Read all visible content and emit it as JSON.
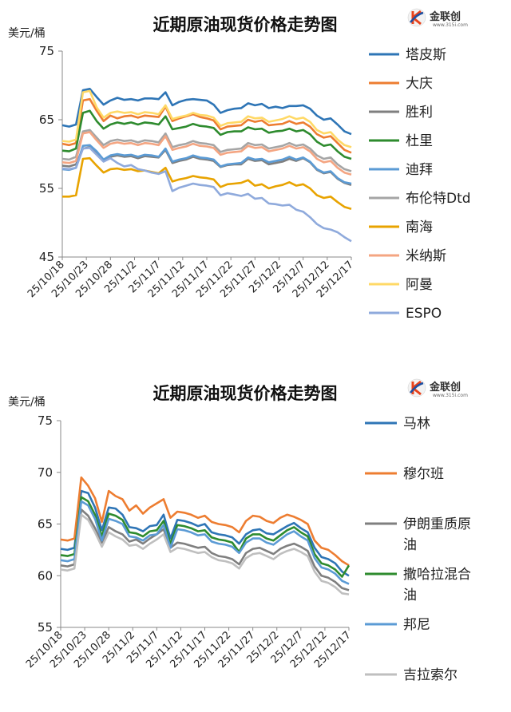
{
  "logo": {
    "text": "金联创",
    "url": "www.315i.com"
  },
  "chart_data": [
    {
      "type": "line",
      "title": "近期原油现货价格走势图",
      "ylabel": "美元/桶",
      "ylim": [
        45,
        75
      ],
      "yticks": [
        45,
        55,
        65,
        75
      ],
      "x_tick_labels": [
        "25/10/18",
        "25/10/23",
        "25/10/28",
        "25/11/2",
        "25/11/7",
        "25/11/12",
        "25/11/17",
        "25/11/22",
        "25/11/27",
        "25/12/2",
        "25/12/7",
        "25/12/12",
        "25/12/17"
      ],
      "grid": false,
      "legend_position": "right",
      "series": [
        {
          "name": "塔皮斯",
          "color": "#2e75b6",
          "values": [
            64.2,
            64.0,
            64.3,
            69.3,
            69.5,
            68.3,
            67.2,
            67.8,
            68.2,
            67.9,
            68.0,
            67.8,
            68.1,
            68.1,
            68.0,
            69.0,
            67.1,
            67.6,
            67.9,
            68.0,
            67.9,
            67.8,
            67.2,
            66.0,
            66.4,
            66.6,
            66.7,
            67.4,
            67.1,
            67.3,
            66.7,
            66.9,
            66.7,
            67.0,
            67.0,
            67.1,
            66.6,
            65.6,
            65.0,
            65.2,
            64.3,
            63.3,
            62.9
          ]
        },
        {
          "name": "大庆",
          "color": "#ed7d31",
          "values": [
            61.5,
            61.3,
            61.6,
            67.8,
            68.0,
            66.3,
            64.8,
            65.6,
            65.2,
            65.5,
            65.6,
            65.3,
            65.6,
            65.5,
            65.4,
            66.9,
            64.8,
            65.2,
            65.5,
            65.8,
            65.4,
            65.2,
            64.9,
            63.6,
            64.0,
            64.1,
            64.2,
            65.0,
            64.7,
            64.9,
            64.2,
            64.3,
            64.4,
            64.8,
            64.4,
            64.6,
            64.0,
            62.9,
            62.4,
            62.6,
            61.6,
            60.6,
            60.2
          ]
        },
        {
          "name": "胜利",
          "color": "#7f7f7f",
          "values": [
            58.3,
            58.2,
            58.5,
            60.8,
            61.0,
            60.2,
            59.0,
            59.6,
            59.8,
            59.6,
            59.7,
            59.4,
            59.7,
            59.6,
            59.5,
            60.6,
            58.7,
            59.0,
            59.2,
            59.6,
            59.3,
            59.2,
            59.0,
            58.1,
            58.4,
            58.5,
            58.5,
            59.3,
            59.0,
            59.1,
            58.5,
            58.7,
            58.9,
            59.3,
            59.0,
            59.4,
            58.8,
            57.7,
            57.2,
            57.4,
            56.4,
            55.8,
            55.5
          ]
        },
        {
          "name": "杜里",
          "color": "#2e8b2e",
          "values": [
            60.5,
            60.4,
            60.8,
            66.0,
            66.3,
            64.8,
            63.7,
            64.3,
            64.6,
            64.4,
            64.6,
            64.3,
            64.6,
            64.5,
            64.3,
            65.5,
            63.6,
            63.8,
            64.0,
            64.4,
            64.1,
            64.0,
            63.8,
            62.8,
            63.2,
            63.3,
            63.3,
            63.9,
            63.6,
            63.7,
            63.1,
            63.3,
            63.4,
            63.7,
            63.3,
            63.5,
            62.9,
            61.8,
            61.2,
            61.4,
            60.4,
            59.6,
            59.3
          ]
        },
        {
          "name": "迪拜",
          "color": "#5b9bd5",
          "values": [
            57.8,
            57.7,
            58.0,
            61.2,
            61.3,
            60.4,
            59.2,
            59.8,
            60.0,
            59.8,
            59.9,
            59.6,
            59.9,
            59.8,
            59.6,
            60.8,
            58.9,
            59.2,
            59.4,
            59.8,
            59.5,
            59.4,
            59.2,
            58.2,
            58.5,
            58.6,
            58.7,
            59.5,
            59.2,
            59.3,
            58.8,
            59.0,
            59.2,
            59.6,
            59.2,
            59.5,
            58.9,
            57.8,
            57.3,
            57.5,
            56.5,
            55.9,
            55.7
          ]
        },
        {
          "name": "布伦特Dtd",
          "color": "#a5a5a5",
          "values": [
            59.3,
            59.2,
            59.6,
            63.3,
            63.5,
            62.4,
            61.3,
            61.9,
            62.1,
            61.9,
            62.0,
            61.7,
            62.0,
            61.9,
            61.7,
            63.0,
            61.0,
            61.3,
            61.5,
            61.9,
            61.6,
            61.5,
            61.3,
            60.3,
            60.6,
            60.7,
            60.8,
            61.6,
            61.3,
            61.4,
            60.8,
            61.0,
            61.2,
            61.6,
            61.2,
            61.4,
            60.8,
            59.8,
            59.3,
            59.5,
            58.5,
            57.8,
            57.5
          ]
        },
        {
          "name": "南海",
          "color": "#e8a300",
          "values": [
            53.8,
            53.8,
            54.0,
            59.3,
            59.4,
            58.3,
            57.3,
            57.8,
            57.9,
            57.7,
            57.8,
            57.5,
            57.6,
            57.4,
            57.2,
            58.0,
            56.0,
            56.3,
            56.5,
            56.8,
            56.6,
            56.5,
            56.3,
            55.2,
            55.6,
            55.7,
            55.8,
            56.2,
            55.4,
            55.6,
            55.0,
            55.3,
            55.5,
            55.9,
            55.4,
            55.6,
            55.0,
            54.0,
            53.6,
            53.8,
            53.0,
            52.3,
            52.0
          ]
        },
        {
          "name": "米纳斯",
          "color": "#f4a582",
          "values": [
            58.8,
            58.7,
            59.0,
            63.0,
            63.2,
            62.0,
            60.9,
            61.5,
            61.7,
            61.5,
            61.6,
            61.3,
            61.6,
            61.5,
            61.3,
            62.6,
            60.6,
            60.9,
            61.1,
            61.5,
            61.2,
            61.1,
            60.9,
            59.9,
            60.2,
            60.3,
            60.4,
            61.2,
            60.9,
            61.0,
            60.4,
            60.6,
            60.8,
            61.2,
            60.8,
            61.0,
            60.4,
            59.3,
            58.8,
            59.0,
            58.0,
            57.3,
            57.0
          ]
        },
        {
          "name": "阿曼",
          "color": "#ffd966",
          "values": [
            61.9,
            61.8,
            62.1,
            69.0,
            69.2,
            66.8,
            65.3,
            66.0,
            66.2,
            66.0,
            66.1,
            65.8,
            66.1,
            66.0,
            65.8,
            67.1,
            65.1,
            65.4,
            65.6,
            66.0,
            65.7,
            65.6,
            65.3,
            64.1,
            64.5,
            64.6,
            64.7,
            65.5,
            65.2,
            65.3,
            64.7,
            64.9,
            65.1,
            65.5,
            65.1,
            65.3,
            64.7,
            63.5,
            63.0,
            63.2,
            62.1,
            61.3,
            61.0
          ]
        },
        {
          "name": "ESPO",
          "color": "#8faadc",
          "values": [
            57.9,
            57.8,
            58.0,
            60.8,
            60.9,
            59.9,
            58.9,
            59.4,
            58.7,
            58.2,
            58.4,
            57.8,
            57.6,
            57.3,
            57.1,
            57.5,
            54.6,
            55.1,
            55.4,
            55.7,
            55.5,
            55.4,
            55.2,
            54.0,
            54.3,
            54.1,
            53.9,
            54.2,
            53.5,
            53.6,
            52.8,
            52.7,
            52.5,
            52.6,
            51.9,
            51.6,
            50.8,
            49.8,
            49.2,
            49.0,
            48.6,
            47.9,
            47.3
          ]
        }
      ]
    },
    {
      "type": "line",
      "title": "近期原油现货价格走势图",
      "ylabel": "美元/桶",
      "ylim": [
        55,
        75
      ],
      "yticks": [
        55,
        60,
        65,
        70,
        75
      ],
      "x_tick_labels": [
        "25/10/18",
        "25/10/23",
        "25/10/28",
        "25/11/2",
        "25/11/7",
        "25/11/12",
        "25/11/17",
        "25/11/22",
        "25/11/27",
        "25/12/2",
        "25/12/7",
        "25/12/12",
        "25/12/17"
      ],
      "grid": false,
      "legend_position": "right",
      "series": [
        {
          "name": "马林",
          "color": "#2e75b6",
          "values": [
            62.6,
            62.5,
            62.7,
            68.2,
            68.0,
            66.6,
            64.4,
            66.6,
            66.5,
            65.9,
            64.7,
            64.6,
            64.3,
            64.8,
            64.9,
            65.9,
            63.6,
            65.4,
            65.3,
            65.1,
            64.8,
            65.0,
            64.2,
            64.0,
            63.9,
            63.7,
            63.1,
            64.0,
            64.4,
            64.5,
            64.1,
            64.0,
            64.4,
            64.8,
            65.1,
            64.6,
            64.2,
            62.7,
            61.8,
            61.6,
            61.2,
            60.4,
            60.0
          ]
        },
        {
          "name": "穆尔班",
          "color": "#ed7d31",
          "values": [
            63.5,
            63.4,
            63.6,
            69.5,
            68.7,
            67.5,
            65.2,
            68.2,
            67.7,
            67.4,
            66.3,
            66.8,
            66.0,
            66.6,
            67.0,
            67.4,
            65.6,
            66.2,
            66.1,
            65.9,
            65.6,
            65.8,
            65.2,
            65.0,
            64.9,
            64.7,
            64.2,
            65.3,
            65.8,
            65.7,
            65.3,
            65.1,
            65.6,
            65.9,
            65.7,
            65.4,
            65.0,
            63.4,
            62.7,
            62.5,
            62.0,
            61.4,
            61.0
          ]
        },
        {
          "name": "伊朗重质原油",
          "color": "#7f7f7f",
          "values": [
            61.0,
            60.9,
            61.1,
            66.4,
            65.8,
            64.6,
            63.2,
            64.7,
            64.3,
            64.0,
            63.3,
            63.5,
            63.1,
            63.6,
            64.0,
            64.5,
            62.7,
            63.2,
            63.1,
            62.9,
            62.7,
            62.8,
            62.2,
            61.9,
            61.8,
            61.6,
            61.1,
            62.2,
            62.6,
            62.7,
            62.4,
            62.1,
            62.6,
            62.9,
            63.1,
            62.8,
            62.4,
            60.9,
            60.0,
            59.8,
            59.4,
            58.8,
            58.6
          ]
        },
        {
          "name": "撒哈拉混合油",
          "color": "#2e8b2e",
          "values": [
            62.0,
            61.9,
            62.1,
            67.6,
            67.2,
            65.9,
            63.8,
            66.0,
            65.8,
            65.4,
            64.2,
            64.1,
            63.8,
            64.3,
            64.4,
            65.3,
            63.1,
            64.9,
            64.8,
            64.6,
            64.3,
            64.4,
            63.7,
            63.5,
            63.4,
            63.2,
            62.3,
            63.6,
            64.0,
            64.0,
            63.6,
            63.4,
            63.9,
            64.4,
            64.7,
            64.2,
            63.8,
            62.1,
            61.2,
            61.0,
            60.6,
            59.9,
            61.0
          ]
        },
        {
          "name": "邦尼",
          "color": "#5b9bd5",
          "values": [
            61.5,
            61.4,
            61.6,
            67.2,
            66.8,
            65.5,
            63.4,
            65.5,
            65.3,
            65.0,
            63.8,
            63.7,
            63.4,
            63.9,
            64.0,
            64.9,
            62.7,
            64.5,
            64.4,
            64.2,
            63.9,
            64.0,
            63.3,
            63.1,
            63.0,
            62.8,
            62.2,
            63.2,
            63.6,
            63.6,
            63.2,
            63.0,
            63.5,
            64.0,
            64.3,
            63.8,
            63.4,
            61.7,
            60.8,
            60.6,
            60.2,
            59.5,
            59.2
          ]
        },
        {
          "name": "吉拉索尔",
          "color": "#bfbfbf",
          "values": [
            60.6,
            60.5,
            60.7,
            65.9,
            65.4,
            64.2,
            62.8,
            64.2,
            63.8,
            63.5,
            62.9,
            63.0,
            62.6,
            63.1,
            63.5,
            64.0,
            62.3,
            62.7,
            62.6,
            62.4,
            62.2,
            62.3,
            61.8,
            61.5,
            61.4,
            61.2,
            60.7,
            61.7,
            62.1,
            62.2,
            61.9,
            61.6,
            62.1,
            62.4,
            62.6,
            62.3,
            61.9,
            60.4,
            59.5,
            59.3,
            58.9,
            58.3,
            58.2
          ]
        }
      ]
    }
  ]
}
